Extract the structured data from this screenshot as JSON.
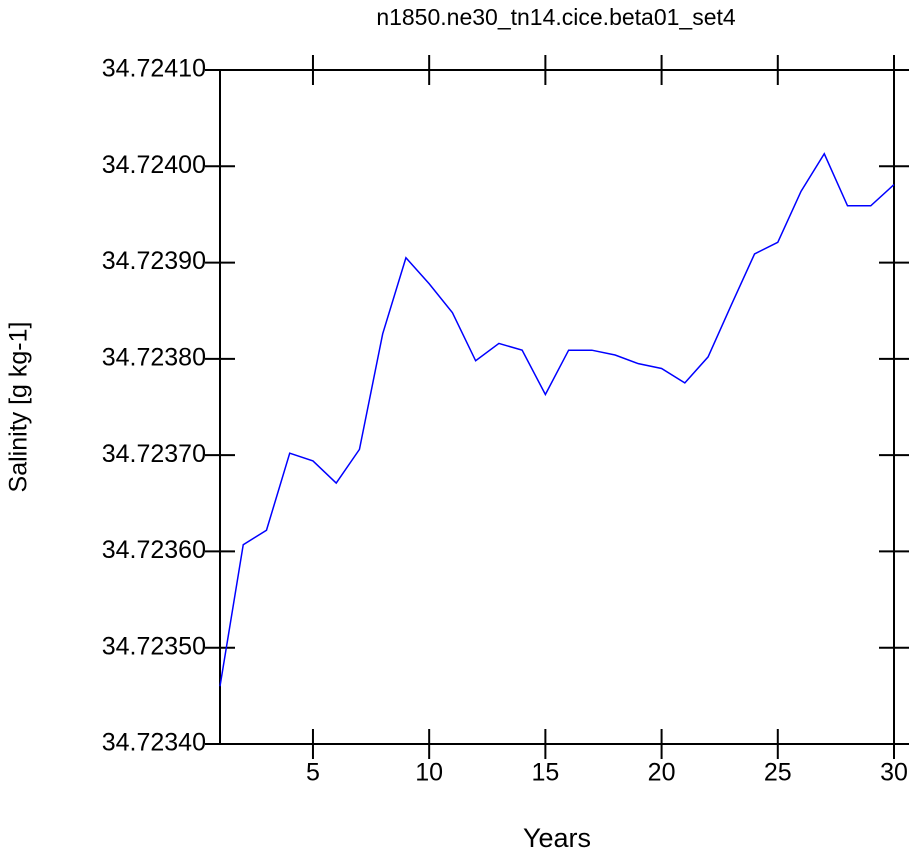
{
  "chart_data": {
    "type": "line",
    "title": "n1850.ne30_tn14.cice.beta01_set4",
    "x_label": "Years",
    "y_label": "Salinity [g kg-1]",
    "x": [
      1,
      2,
      3,
      4,
      5,
      6,
      7,
      8,
      9,
      10,
      11,
      12,
      13,
      14,
      15,
      16,
      17,
      18,
      19,
      20,
      21,
      22,
      23,
      24,
      25,
      26,
      27,
      28,
      29,
      30
    ],
    "series": [
      {
        "color": "#0000ff",
        "values": [
          34.72346,
          34.723607,
          34.723622,
          34.723702,
          34.723694,
          34.723671,
          34.723706,
          34.723826,
          34.723905,
          34.723878,
          34.723848,
          34.723798,
          34.723816,
          34.723809,
          34.723763,
          34.723809,
          34.723809,
          34.723804,
          34.723795,
          34.72379,
          34.723775,
          34.723802,
          34.723856,
          34.723909,
          34.723921,
          34.723974,
          34.724013,
          34.723959,
          34.723959,
          34.723981
        ]
      }
    ],
    "xlim": [
      1,
      30
    ],
    "xticks": [
      5,
      10,
      15,
      20,
      25,
      30
    ],
    "ylim": [
      34.7234,
      34.7241
    ],
    "yticks": [
      {
        "value": 34.7234,
        "label": "34.72340"
      },
      {
        "value": 34.7235,
        "label": "34.72350"
      },
      {
        "value": 34.7236,
        "label": "34.72360"
      },
      {
        "value": 34.7237,
        "label": "34.72370"
      },
      {
        "value": 34.7238,
        "label": "34.72380"
      },
      {
        "value": 34.7239,
        "label": "34.72390"
      },
      {
        "value": 34.724,
        "label": "34.72400"
      },
      {
        "value": 34.7241,
        "label": "34.72410"
      }
    ]
  }
}
